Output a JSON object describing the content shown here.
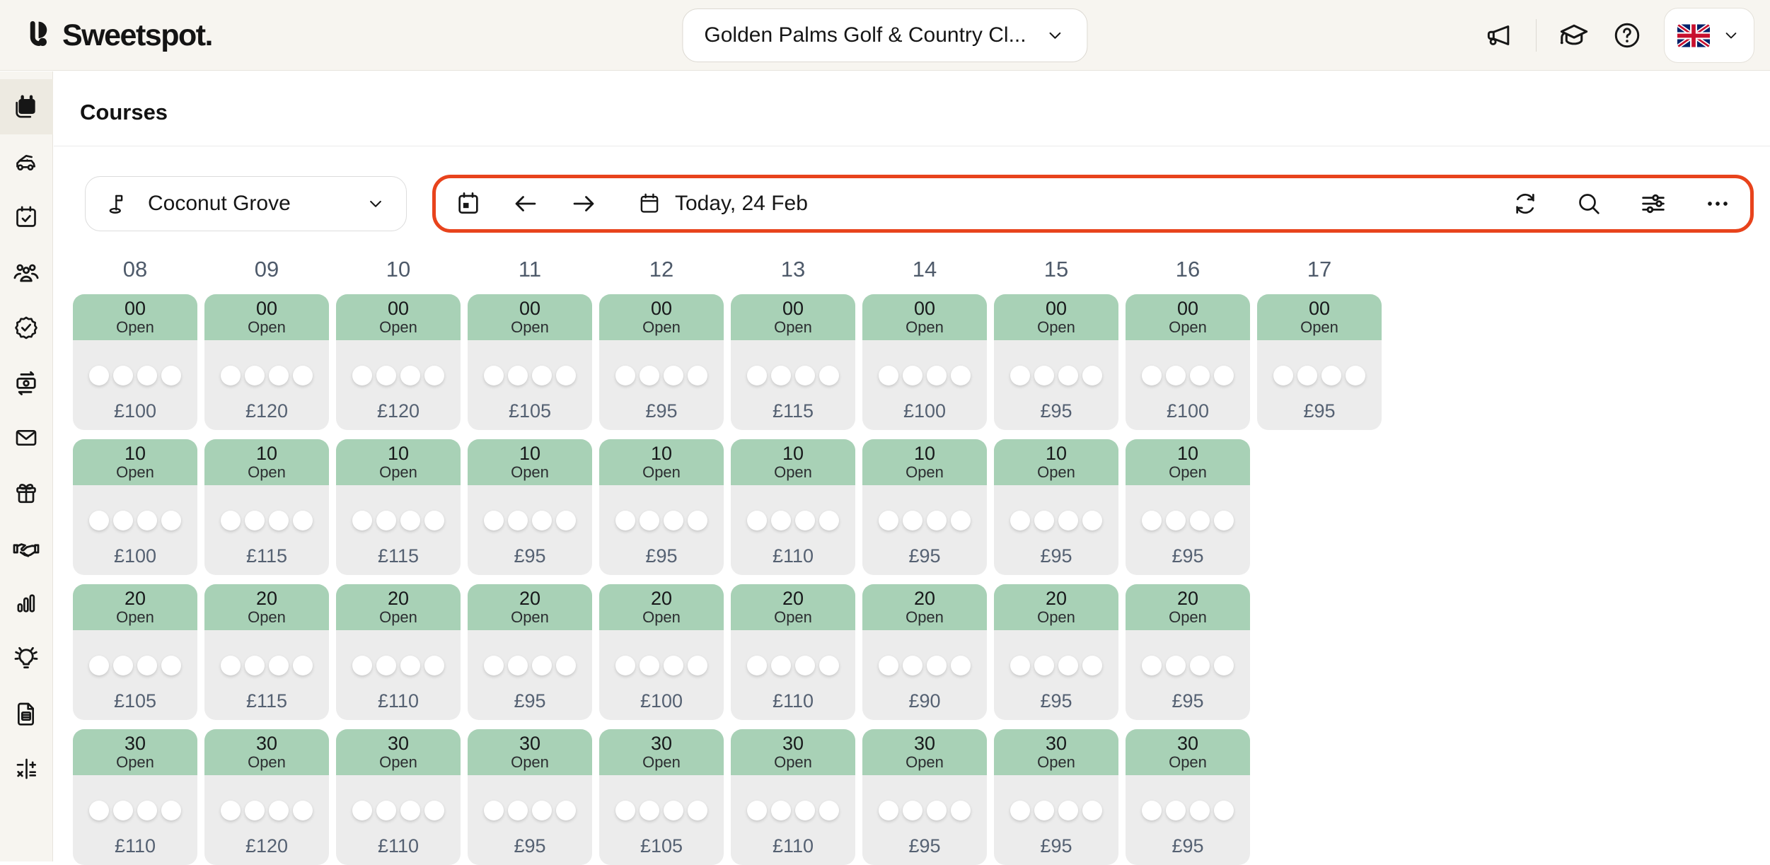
{
  "colors": {
    "topbar_bg": "#f7f5f0",
    "accent_red": "#e8431c",
    "cell_green": "#a8d1b6",
    "cell_gray": "#ececec",
    "slate": "#556172"
  },
  "topbar": {
    "logo_text": "Sweetspot.",
    "club_selector_value": "Golden Palms Golf & Country Cl...",
    "icons": [
      "megaphone-icon",
      "graduation-cap-icon",
      "help-icon"
    ],
    "language_flag": "United Kingdom"
  },
  "sidebar": {
    "items": [
      {
        "icon": "calendar-icon",
        "active": true
      },
      {
        "icon": "golf-cart-icon",
        "active": false
      },
      {
        "icon": "calendar-check-icon",
        "active": false
      },
      {
        "icon": "people-icon",
        "active": false
      },
      {
        "icon": "badge-check-icon",
        "active": false
      },
      {
        "icon": "money-transfer-icon",
        "active": false
      },
      {
        "icon": "envelope-icon",
        "active": false
      },
      {
        "icon": "gift-icon",
        "active": false
      },
      {
        "icon": "handshake-icon",
        "active": false
      },
      {
        "icon": "bar-chart-icon",
        "active": false
      },
      {
        "icon": "lightbulb-icon",
        "active": false
      },
      {
        "icon": "document-icon",
        "active": false
      },
      {
        "icon": "calculator-icon",
        "active": false
      }
    ]
  },
  "page": {
    "title": "Courses"
  },
  "controls": {
    "course_selector_value": "Coconut Grove",
    "date_label": "Today, 24 Feb",
    "toolbar_icons": [
      "calendar-today-icon",
      "arrow-left-icon",
      "arrow-right-icon",
      "calendar-icon",
      "refresh-icon",
      "search-icon",
      "filters-icon",
      "more-icon"
    ]
  },
  "tee_sheet": {
    "hours": [
      "08",
      "09",
      "10",
      "11",
      "12",
      "13",
      "14",
      "15",
      "16",
      "17"
    ],
    "slot_count": 4,
    "status_label": "Open",
    "currency": "£",
    "rows": [
      {
        "minute": "00",
        "prices": [
          "£100",
          "£120",
          "£120",
          "£105",
          "£95",
          "£115",
          "£100",
          "£95",
          "£100",
          "£95"
        ]
      },
      {
        "minute": "10",
        "prices": [
          "£100",
          "£115",
          "£115",
          "£95",
          "£95",
          "£110",
          "£95",
          "£95",
          "£95"
        ]
      },
      {
        "minute": "20",
        "prices": [
          "£105",
          "£115",
          "£110",
          "£95",
          "£100",
          "£110",
          "£90",
          "£95",
          "£95"
        ]
      },
      {
        "minute": "30",
        "prices": [
          "£110",
          "£120",
          "£110",
          "£95",
          "£105",
          "£110",
          "£95",
          "£95",
          "£95"
        ]
      }
    ]
  }
}
